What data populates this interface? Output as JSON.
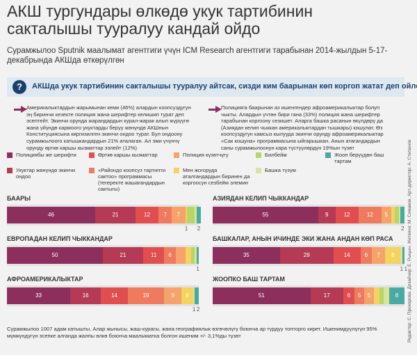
{
  "chart_data": {
    "type": "bar",
    "stacked": true,
    "orientation": "horizontal",
    "title": "АКШ тургундары өлкөдө укук тартибинин сакталышы тууралуу кандай ойдо",
    "subtitle": "Сурамжылоо Sputnik маалымат агентгиги үчүн ICM Research агентгиги тарабынан 2014-жылдын 5-17-декабрында АКШда өткөрүлгөн",
    "question": "АКШда укук тартибинин сакталышы тууралуу айтсак, сизди ким баарынан көп коргоп жатат деп ойлойсуз",
    "notes": [
      "Америкалыктардын жарымынан кеми (46%) алардын коопсуздугун эң биринчи кезекте полиция жана шерифтер келишип турат деп эсептейт. Экинчи орунда жарандардын курал-жарак алып жүрүүгө жана үйүндө кармоого укуктарды берүү жөнүндө АКШнын Конституциясына киргизилген экинчи ондоо турат. Бул ондоону сурамжылоого катышкандардын 21% аталаган. Ал эми үчүнчү орунду өрткө каршы кызматтар ээлейт (12%)",
      "Полицияга баарынан аз ишенгендер афроамерикалыктар болуп чыкты. Алардын үчтөн бири гана (33%) полиция жана шерифтер тарабынан коргоону сезишет. Аларга башка расанын өкүлдөрү да (Азиядан келип чыккан америкалыктардан тышкары) кошулат. Өз коопсуздугун камсыз кылууда экинчи орунду афроамерикалыктар «Сак кошуна» программасына ыйгарышкан. Анын атагандардын саны сурамжылоонун кара түстүүлөрдүн 19%ын түзөт"
    ],
    "categories": [
      "БААРЫ",
      "АЗИЯДАН КЕЛИП ЧЫККАНДАР",
      "ЕВРОПАДАН КЕЛИП ЧЫККАНДАР",
      "БАШКАЛАР, АНЫН ИЧИНДЕ ЭКИ ЖАНА АНДАН КӨП РАСА",
      "АФРОАМЕРИКАЛЫКТАР",
      "ЖООПКО БАШ ТАРТАМ"
    ],
    "xlim": [
      0,
      100
    ],
    "series": [
      {
        "name": "Полициябы же шерифти",
        "color": "#8c2f5c",
        "values": [
          46,
          55,
          50,
          35,
          33,
          51
        ],
        "value_labels": [
          "46",
          "55",
          "50",
          "35",
          "33",
          "51"
        ]
      },
      {
        "name": "Укуктар жөнүндө экинчи ондоо",
        "color": "#b43a55",
        "values": [
          21,
          9,
          21,
          28,
          16,
          17
        ],
        "value_labels": [
          "21",
          "9",
          "21",
          "28",
          "16",
          "17"
        ]
      },
      {
        "name": "Өрткө каршы кызматтар",
        "color": "#e04e4f",
        "values": [
          12,
          12,
          11,
          14,
          14,
          6
        ],
        "value_labels": [
          "12",
          "12",
          "11",
          "14",
          "14",
          "6"
        ]
      },
      {
        "name": "«Райондо коопсуз тартипти сактоо» программасы (тегеректе жашагандардын сактыгы)",
        "color": "#ee7b5e",
        "values": [
          7,
          12,
          6,
          6,
          19,
          5
        ],
        "value_labels": [
          "7",
          "12",
          "6",
          "6",
          "19",
          "5"
        ]
      },
      {
        "name": "Полиция күзөтчүгү",
        "color": "#f5a26b",
        "values": [
          7,
          5,
          5,
          7,
          9,
          5
        ],
        "value_labels": [
          "7",
          "5",
          null,
          "7",
          "9",
          "5"
        ]
      },
      {
        "name": "Мен жогоруда аталгандардын биринен да коргоосун сезбейм элемин",
        "color": "#f4d35e",
        "values": [
          1,
          2,
          3,
          8,
          6,
          3
        ],
        "value_labels": [
          "1",
          null,
          null,
          "8",
          "6",
          null
        ]
      },
      {
        "name": "Билбейм",
        "color": "#b8d56a",
        "values": [
          4,
          2,
          2,
          0,
          0,
          2
        ],
        "value_labels": [
          null,
          null,
          null,
          null,
          null,
          null
        ]
      },
      {
        "name": "Башка түзүм",
        "color": "#d6e59a",
        "values": [
          1,
          1,
          1,
          1,
          1,
          3
        ],
        "value_labels": [
          null,
          null,
          null,
          "1",
          "1",
          null
        ]
      },
      {
        "name": "Жооп берүүдөн баш тартам",
        "color": "#49a9a3",
        "values": [
          2,
          2,
          1,
          1,
          2,
          8
        ],
        "value_labels": [
          "2",
          "2",
          "1",
          "1",
          "2",
          "8"
        ]
      }
    ],
    "footnote": "Сурамжылоо 1007 адам катышты. Алар жынысы, жаш-курагы, жана географиялык өзгөчөлүгү боюнча ар түрдүү топторго кирет. Ишенимдүүлүгүн 95% мүмкүндүгүн эсепке алганда жалпы өлкө боюнча маалыматка болгон ишеним +/- 3,1%ды түзөт",
    "credits": "Редактор: С. Прохорова. Дизайнер: Е. Рыцын. Жетекчи: М. Симаков. Арт-директор: А. Степанов"
  }
}
